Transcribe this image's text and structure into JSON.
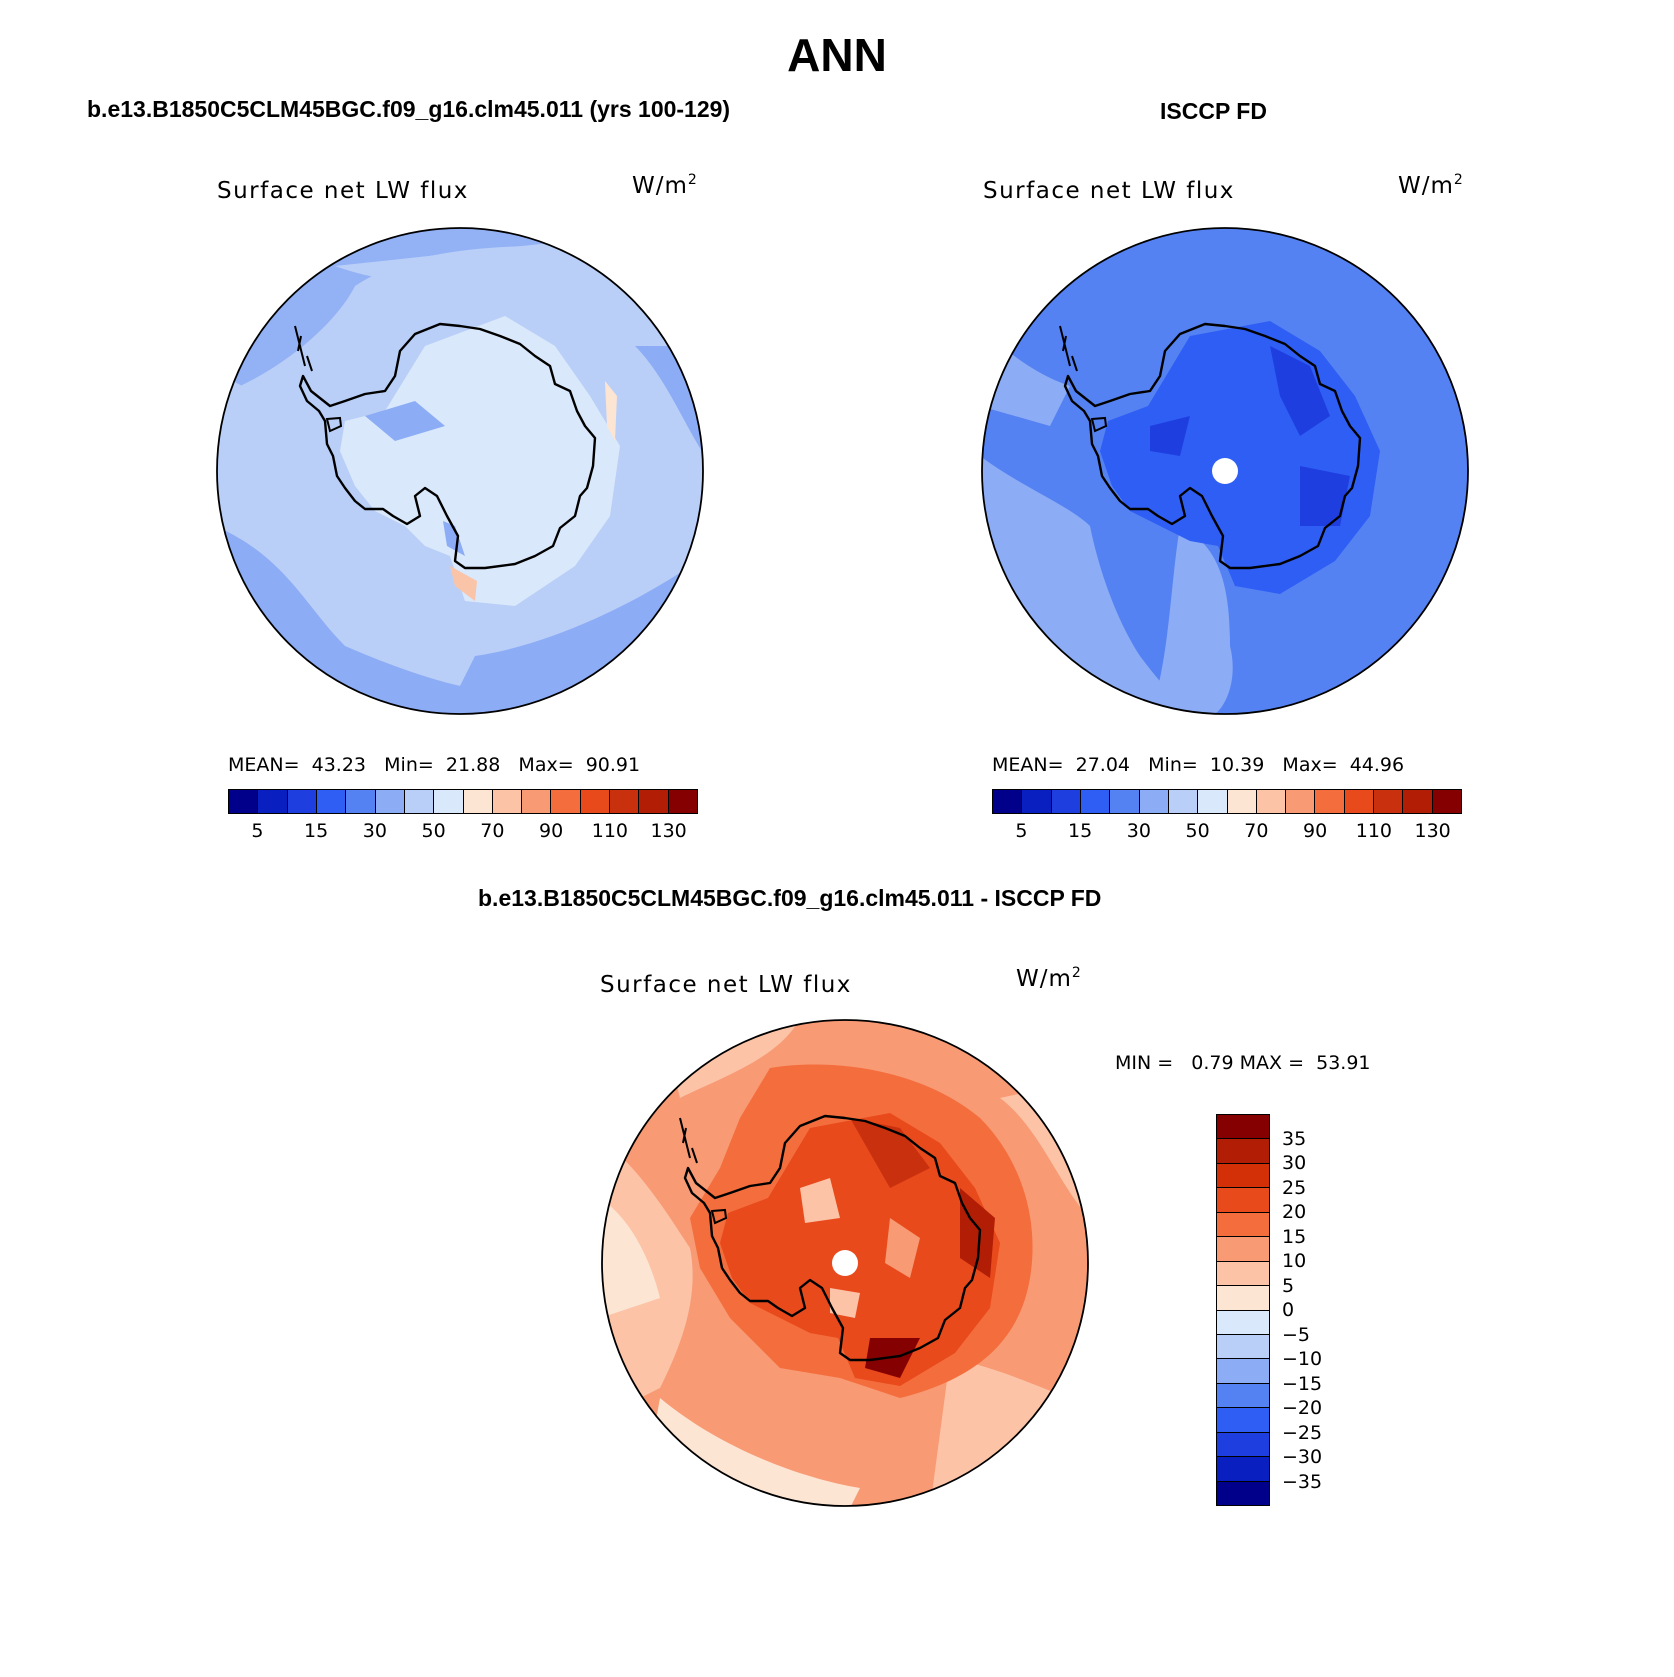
{
  "page": {
    "season": "ANN",
    "model_case": "b.e13.B1850C5CLM45BGC.f09_g16.clm45.011 (yrs 100-129)",
    "obs_case": "ISCCP FD",
    "diff_case": "b.e13.B1850C5CLM45BGC.f09_g16.clm45.011 - ISCCP FD"
  },
  "colors": {
    "abs_levels": [
      "#00008b",
      "#0a1fbf",
      "#1f3ee0",
      "#2f5ef5",
      "#5582f2",
      "#8cacf5",
      "#b9cff7",
      "#d9e8fa",
      "#fde5d4",
      "#fcc3a7",
      "#f89a74",
      "#f46d3d",
      "#e84a1c",
      "#c9300e",
      "#b11d05",
      "#850000"
    ],
    "diff_levels": [
      "#850000",
      "#b11d05",
      "#d43008",
      "#e84a1c",
      "#f46d3d",
      "#f89a74",
      "#fcc3a7",
      "#fde5d4",
      "#d9e8fa",
      "#b9cff7",
      "#8cacf5",
      "#5582f2",
      "#2f5ef5",
      "#1f3ee0",
      "#0a1fbf",
      "#00008b"
    ]
  },
  "panels": {
    "model": {
      "label": "Surface net LW flux",
      "units": "W/m",
      "units_sup": "2",
      "mean_label": "MEAN=",
      "mean": "43.23",
      "min_label": "Min=",
      "min": "21.88",
      "max_label": "Max=",
      "max": "90.91",
      "ticks": [
        "5",
        "15",
        "30",
        "50",
        "70",
        "90",
        "110",
        "130"
      ]
    },
    "obs": {
      "label": "Surface net LW flux",
      "units": "W/m",
      "units_sup": "2",
      "mean_label": "MEAN=",
      "mean": "27.04",
      "min_label": "Min=",
      "min": "10.39",
      "max_label": "Max=",
      "max": "44.96",
      "ticks": [
        "5",
        "15",
        "30",
        "50",
        "70",
        "90",
        "110",
        "130"
      ]
    },
    "diff": {
      "label": "Surface net LW flux",
      "units": "W/m",
      "units_sup": "2",
      "min_label": "MIN =",
      "min": "0.79",
      "max_label": "MAX =",
      "max": "53.91",
      "ticks": [
        "35",
        "30",
        "25",
        "20",
        "15",
        "10",
        "5",
        "0",
        "−5",
        "−10",
        "−15",
        "−20",
        "−25",
        "−30",
        "−35"
      ]
    }
  }
}
